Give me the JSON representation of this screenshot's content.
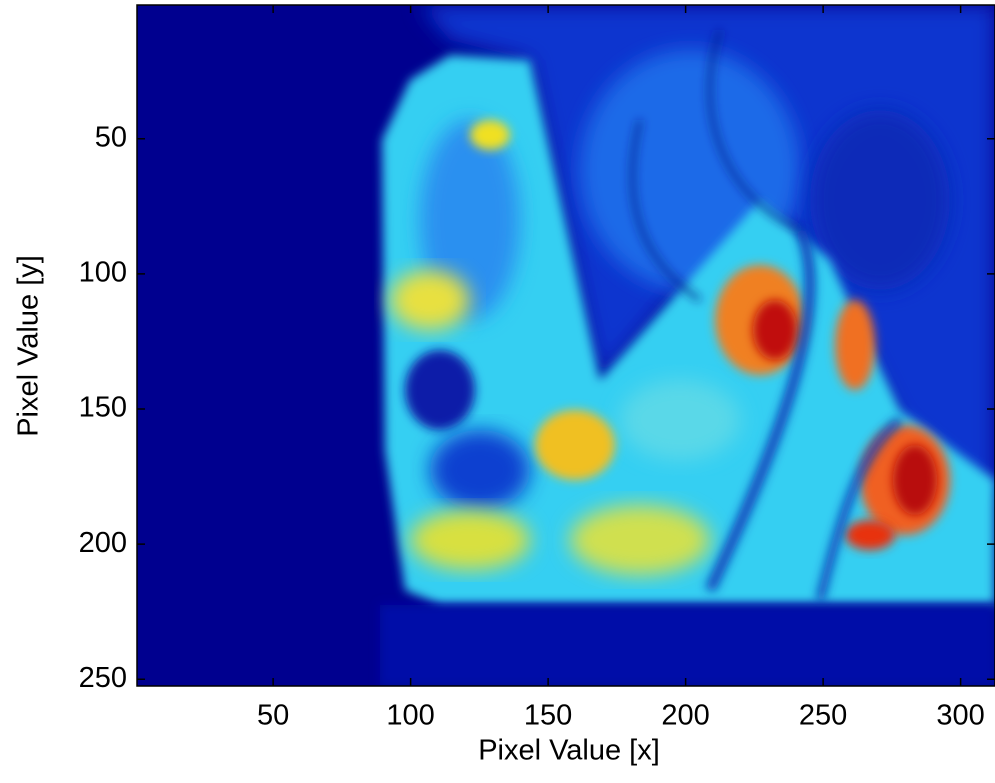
{
  "chart_data": {
    "type": "image",
    "xlabel": "Pixel Value [x]",
    "ylabel": "Pixel Value [y]",
    "xlim": [
      0.5,
      312.5
    ],
    "ylim": [
      0.5,
      252.5
    ],
    "ydir": "reverse",
    "xticks": [
      50,
      100,
      150,
      200,
      250,
      300
    ],
    "yticks": [
      50,
      100,
      150,
      200,
      250
    ]
  }
}
